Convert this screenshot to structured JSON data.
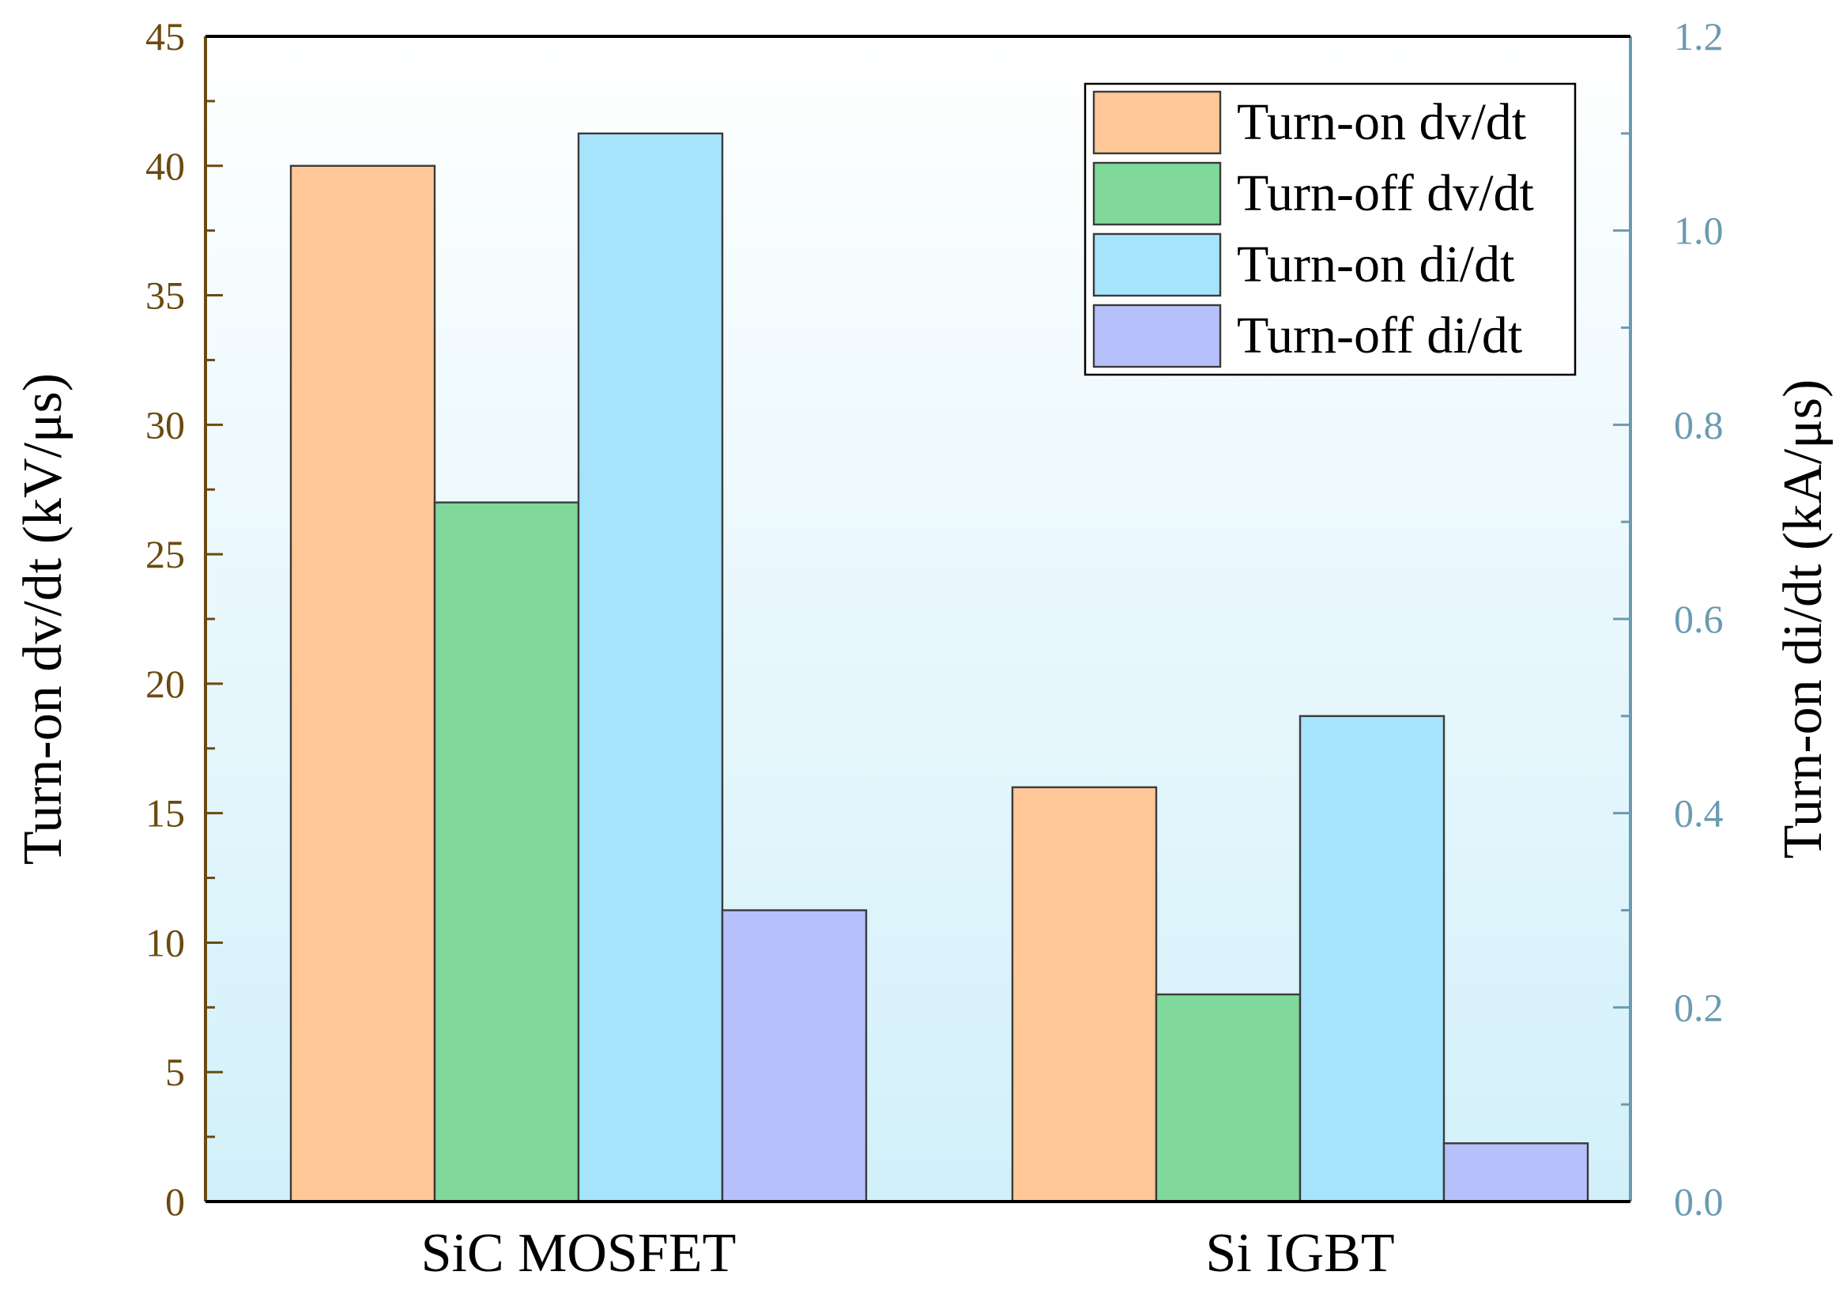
{
  "chart_data": {
    "type": "bar",
    "title": "",
    "categories": [
      "SiC MOSFET",
      "Si IGBT"
    ],
    "xlabel": "",
    "ylabel_left": "Turn-on dv/dt (kV/μs)",
    "ylabel_right": "Turn-on di/dt (kA/μs)",
    "ylim_left": [
      0,
      45
    ],
    "ylim_right": [
      0,
      1.2
    ],
    "yticks_left": [
      "0",
      "5",
      "10",
      "15",
      "20",
      "25",
      "30",
      "35",
      "40",
      "45"
    ],
    "yticks_right": [
      "0.0",
      "0.2",
      "0.4",
      "0.6",
      "0.8",
      "1.0",
      "1.2"
    ],
    "series": [
      {
        "name": "Turn-on dv/dt",
        "axis": "left",
        "color": "#ffc896",
        "values": [
          40,
          16
        ]
      },
      {
        "name": "Turn-off dv/dt",
        "axis": "left",
        "color": "#80d99b",
        "values": [
          27,
          8
        ]
      },
      {
        "name": "Turn-on di/dt",
        "axis": "right",
        "color": "#a6e4fc",
        "values": [
          1.1,
          0.5
        ]
      },
      {
        "name": "Turn-off di/dt",
        "axis": "right",
        "color": "#b6c1fc",
        "values": [
          0.3,
          0.06
        ]
      }
    ],
    "legend_position": "top-right",
    "grid": false,
    "colors": {
      "left_axis": "#6b4a10",
      "right_axis": "#6a9bb0",
      "background_top": "#ffffff",
      "background_bottom": "#d2f0fa"
    }
  }
}
